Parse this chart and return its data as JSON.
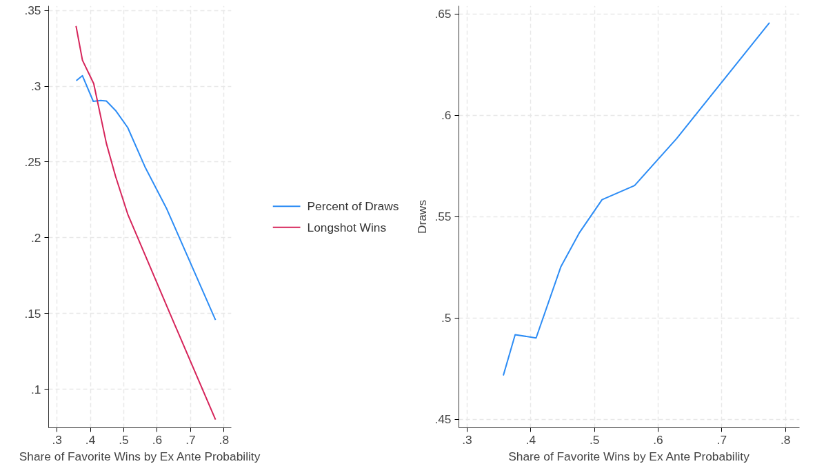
{
  "chart_data": [
    {
      "type": "line",
      "xlabel": "Share of Favorite Wins by Ex Ante Probability",
      "legend": "right",
      "grid": true,
      "xlim": [
        0.275,
        0.822
      ],
      "ylim": [
        0.0746,
        0.353
      ],
      "xticks": [
        {
          "value": 0.3,
          "label": ".3"
        },
        {
          "value": 0.4,
          "label": ".4"
        },
        {
          "value": 0.5,
          "label": ".5"
        },
        {
          "value": 0.6,
          "label": ".6"
        },
        {
          "value": 0.7,
          "label": ".7"
        },
        {
          "value": 0.8,
          "label": ".8"
        }
      ],
      "yticks": [
        {
          "value": 0.1,
          "label": ".1"
        },
        {
          "value": 0.15,
          "label": ".15"
        },
        {
          "value": 0.2,
          "label": ".2"
        },
        {
          "value": 0.25,
          "label": ".25"
        },
        {
          "value": 0.3,
          "label": ".3"
        },
        {
          "value": 0.35,
          "label": ".35"
        }
      ],
      "series": [
        {
          "name": "Percent of Draws",
          "color": "#2c8cf5",
          "x": [
            0.3578,
            0.3763,
            0.4087,
            0.4307,
            0.4479,
            0.4754,
            0.5118,
            0.5634,
            0.6287,
            0.7746
          ],
          "values": [
            0.3036,
            0.3069,
            0.29,
            0.2906,
            0.2902,
            0.284,
            0.2727,
            0.2468,
            0.219,
            0.1457
          ]
        },
        {
          "name": "Longshot Wins",
          "color": "#d6245a",
          "x": [
            0.3571,
            0.3763,
            0.41,
            0.4479,
            0.4754,
            0.5118,
            0.5634,
            0.6287,
            0.7746
          ],
          "values": [
            0.3397,
            0.3171,
            0.3017,
            0.2623,
            0.2405,
            0.2156,
            0.1888,
            0.1549,
            0.08
          ]
        }
      ]
    },
    {
      "type": "line",
      "xlabel": "Share of Favorite Wins by Ex Ante Probability",
      "ylabel": "Draws",
      "grid": true,
      "xlim": [
        0.287,
        0.822
      ],
      "ylim": [
        0.4459,
        0.654
      ],
      "xticks": [
        {
          "value": 0.3,
          "label": ".3"
        },
        {
          "value": 0.4,
          "label": ".4"
        },
        {
          "value": 0.5,
          "label": ".5"
        },
        {
          "value": 0.6,
          "label": ".6"
        },
        {
          "value": 0.7,
          "label": ".7"
        },
        {
          "value": 0.8,
          "label": ".8"
        }
      ],
      "yticks": [
        {
          "value": 0.45,
          "label": ".45"
        },
        {
          "value": 0.5,
          "label": ".5"
        },
        {
          "value": 0.55,
          "label": ".55"
        },
        {
          "value": 0.6,
          "label": ".6"
        },
        {
          "value": 0.65,
          "label": ".65"
        }
      ],
      "series": [
        {
          "color": "#2c8cf5",
          "x": [
            0.3568,
            0.3754,
            0.4083,
            0.4473,
            0.4759,
            0.5119,
            0.563,
            0.6289,
            0.7749
          ],
          "values": [
            0.4717,
            0.4918,
            0.4902,
            0.5254,
            0.5419,
            0.5584,
            0.5654,
            0.5885,
            0.6457
          ]
        }
      ]
    }
  ]
}
